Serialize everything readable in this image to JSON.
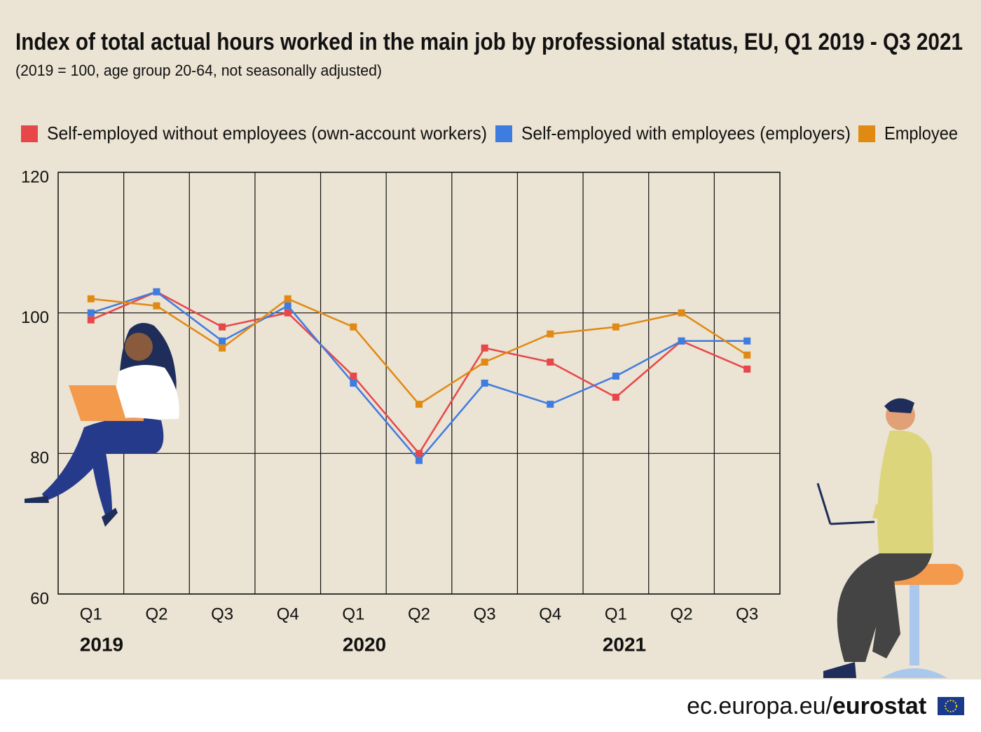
{
  "chart_data": {
    "type": "line",
    "title": "Index of total actual hours worked in the main job by professional status, EU, Q1 2019 - Q3 2021",
    "subtitle": "(2019 = 100, age group 20-64, not seasonally adjusted)",
    "categories": [
      "Q1",
      "Q2",
      "Q3",
      "Q4",
      "Q1",
      "Q2",
      "Q3",
      "Q4",
      "Q1",
      "Q2",
      "Q3"
    ],
    "year_labels": [
      "2019",
      "2020",
      "2021"
    ],
    "series": [
      {
        "name": "Self-employed without employees (own-account workers)",
        "color": "#e8474a",
        "values": [
          99,
          103,
          98,
          100,
          91,
          80,
          95,
          93,
          88,
          96,
          92
        ]
      },
      {
        "name": "Self-employed with employees (employers)",
        "color": "#3f7ce0",
        "values": [
          100,
          103,
          96,
          101,
          90,
          79,
          90,
          87,
          91,
          96,
          96
        ]
      },
      {
        "name": "Employee",
        "color": "#e08a14",
        "values": [
          102,
          101,
          95,
          102,
          98,
          87,
          93,
          97,
          98,
          100,
          94
        ]
      }
    ],
    "ylim": [
      60,
      120
    ],
    "yticks": [
      60,
      80,
      100,
      120
    ],
    "grid": true
  },
  "footer": {
    "site": "ec.europa.eu/",
    "brand": "eurostat"
  }
}
